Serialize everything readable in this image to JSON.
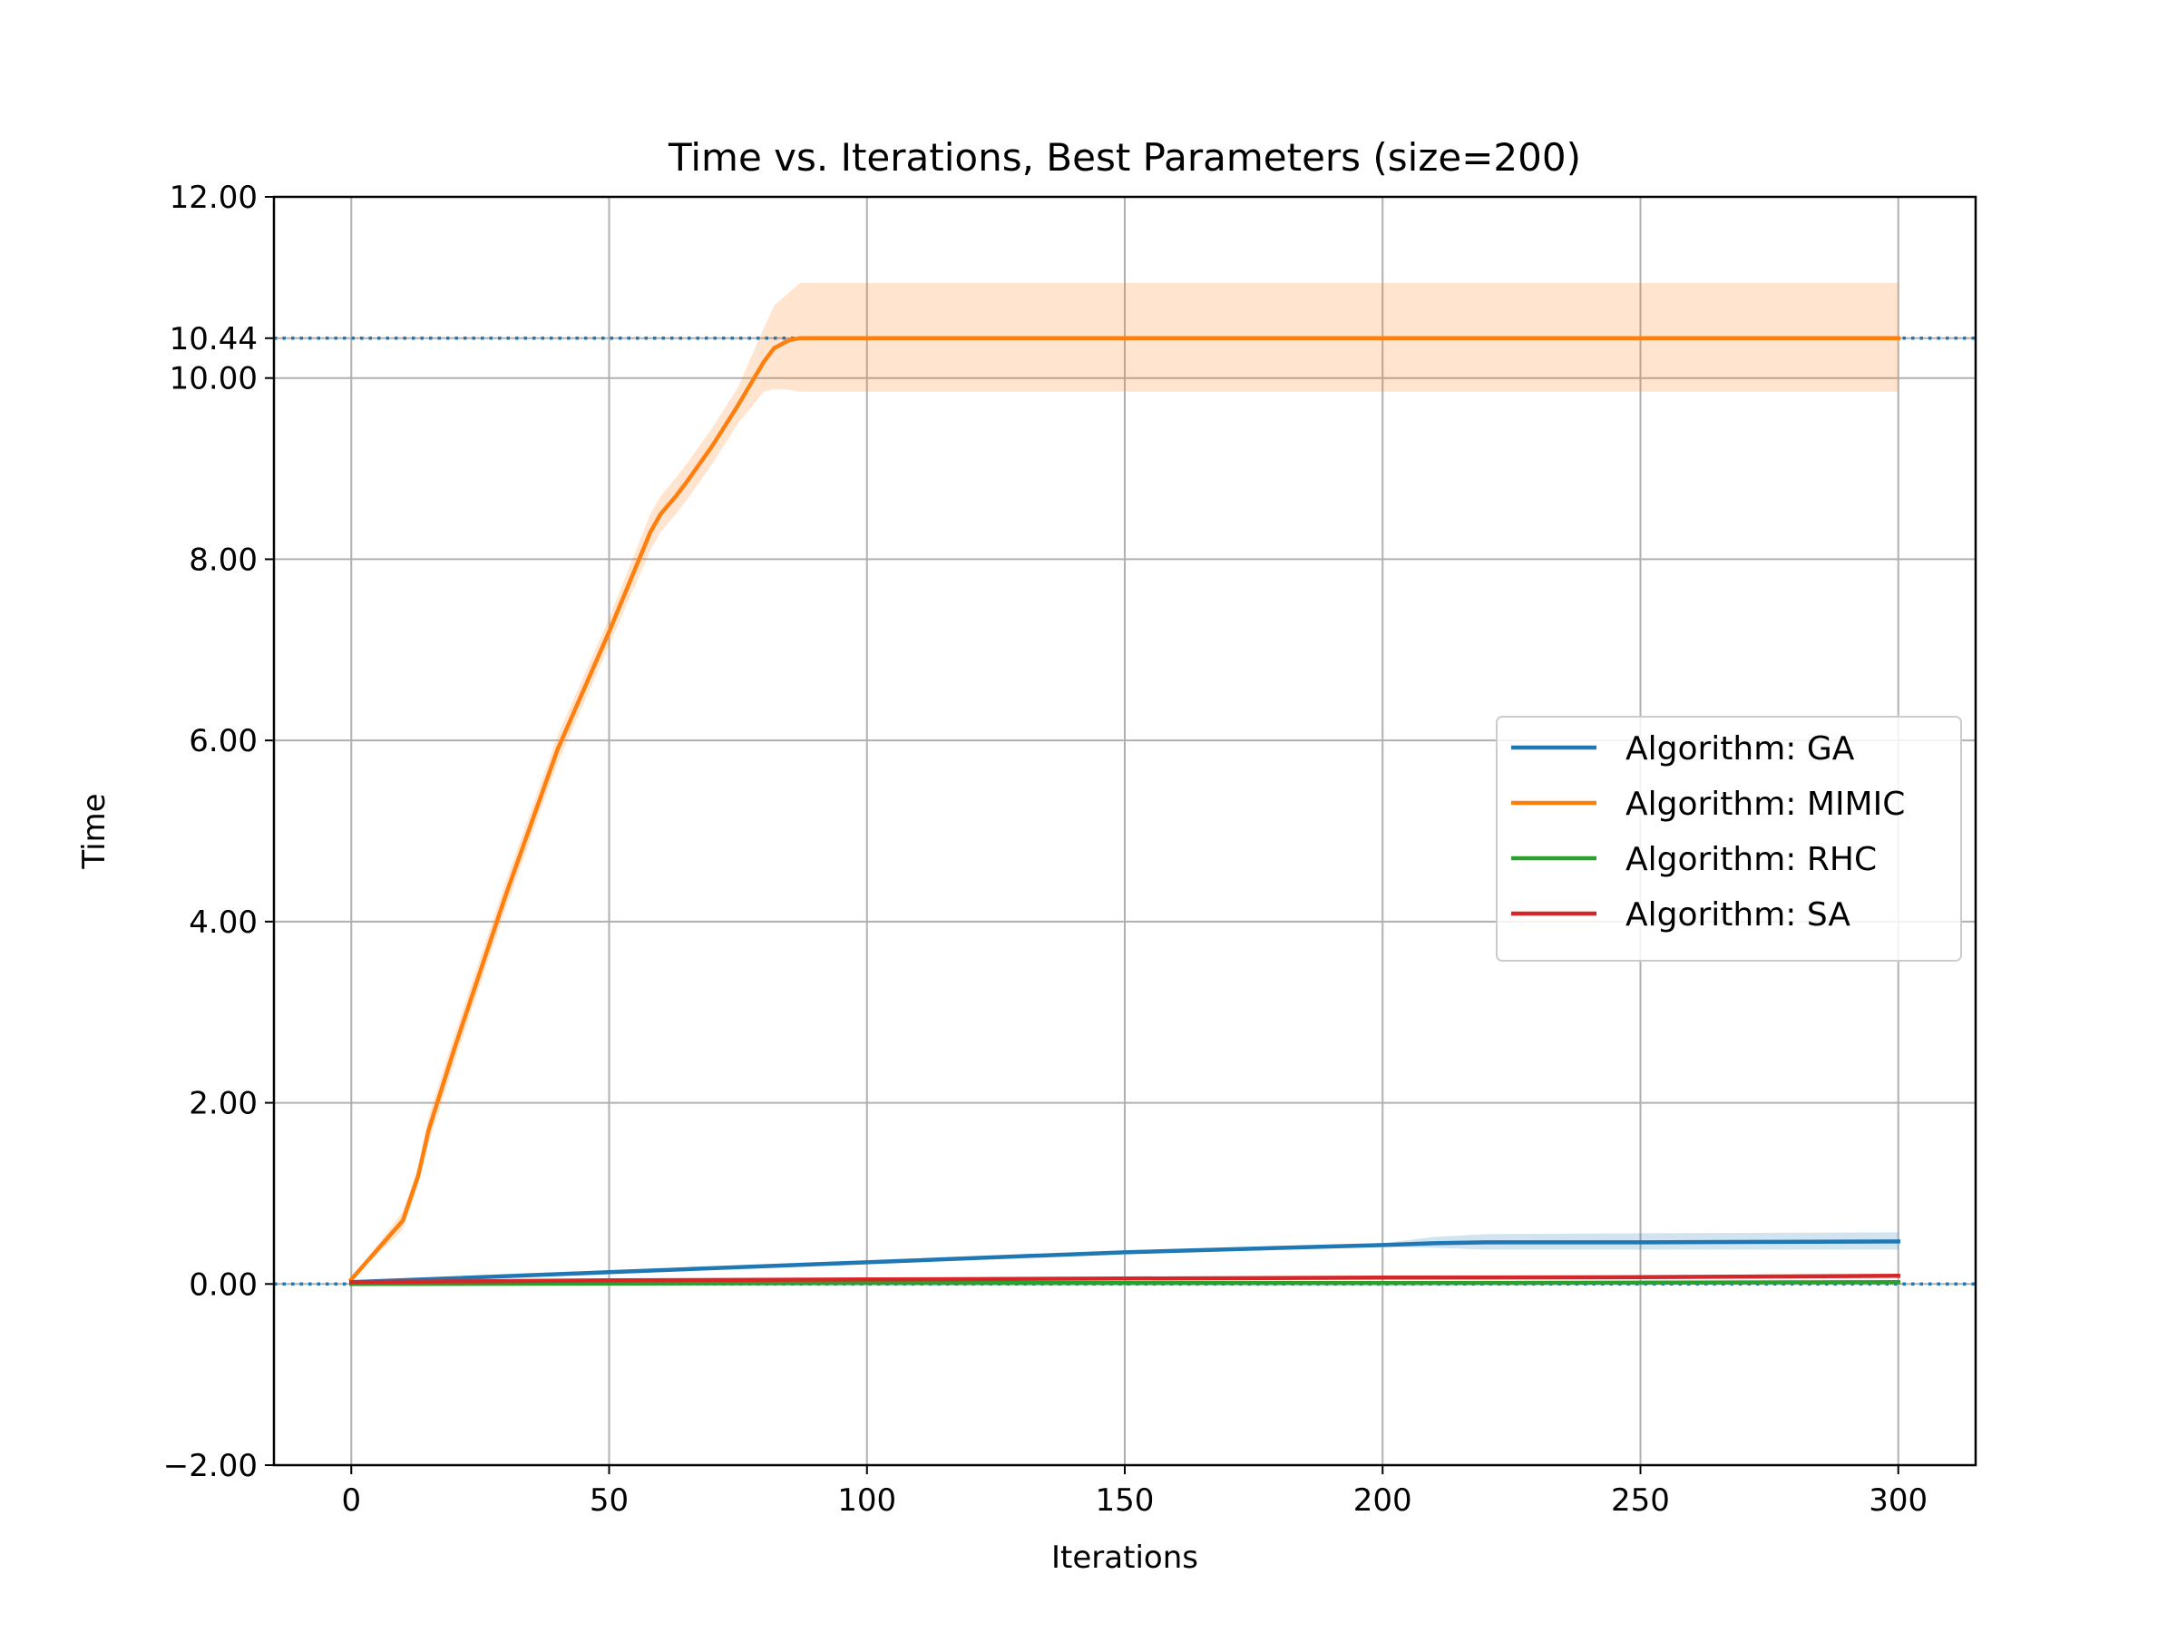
{
  "chart_data": {
    "type": "line",
    "title": "Time vs. Iterations, Best Parameters (size=200)",
    "xlabel": "Iterations",
    "ylabel": "Time",
    "xlim": [
      -15,
      315
    ],
    "ylim": [
      -2,
      12
    ],
    "xticks": [
      0,
      50,
      100,
      150,
      200,
      250,
      300
    ],
    "xtick_labels": [
      "0",
      "50",
      "100",
      "150",
      "200",
      "250",
      "300"
    ],
    "yticks": [
      -2,
      0,
      2,
      4,
      6,
      8,
      10,
      10.44,
      12
    ],
    "ytick_labels": [
      "−2.00",
      "0.00",
      "2.00",
      "4.00",
      "6.00",
      "8.00",
      "10.00",
      "10.44",
      "12.00"
    ],
    "grid": true,
    "legend_position": "center-right",
    "reference_lines": [
      {
        "y": 10.44,
        "style": "dotted",
        "color": "#1f77b4"
      },
      {
        "y": 0.0,
        "style": "dotted",
        "color": "#1f77b4"
      }
    ],
    "series": [
      {
        "name": "Algorithm: GA",
        "color": "#1f77b4",
        "x": [
          0,
          50,
          100,
          150,
          200,
          210,
          220,
          250,
          300
        ],
        "y": [
          0.02,
          0.13,
          0.24,
          0.35,
          0.43,
          0.45,
          0.46,
          0.46,
          0.47
        ],
        "band_lower": [
          0.02,
          0.12,
          0.23,
          0.34,
          0.41,
          0.4,
          0.38,
          0.38,
          0.38
        ],
        "band_upper": [
          0.02,
          0.14,
          0.25,
          0.36,
          0.45,
          0.52,
          0.55,
          0.56,
          0.57
        ]
      },
      {
        "name": "Algorithm: MIMIC",
        "color": "#ff7f0e",
        "x": [
          0,
          10,
          13,
          15,
          20,
          30,
          40,
          50,
          58,
          60,
          63,
          65,
          70,
          75,
          80,
          82,
          85,
          87,
          90,
          100,
          150,
          200,
          250,
          300
        ],
        "y": [
          0.05,
          0.7,
          1.2,
          1.7,
          2.6,
          4.3,
          5.9,
          7.2,
          8.3,
          8.5,
          8.7,
          8.85,
          9.25,
          9.7,
          10.18,
          10.33,
          10.42,
          10.44,
          10.44,
          10.44,
          10.44,
          10.44,
          10.44,
          10.44
        ],
        "band_lower": [
          0.05,
          0.6,
          1.1,
          1.55,
          2.45,
          4.15,
          5.75,
          7.05,
          8.1,
          8.3,
          8.5,
          8.65,
          9.05,
          9.5,
          9.85,
          9.88,
          9.87,
          9.85,
          9.85,
          9.85,
          9.85,
          9.85,
          9.85,
          9.85
        ],
        "band_upper": [
          0.05,
          0.8,
          1.3,
          1.85,
          2.75,
          4.45,
          6.05,
          7.35,
          8.5,
          8.7,
          8.9,
          9.05,
          9.45,
          9.9,
          10.55,
          10.8,
          10.95,
          11.05,
          11.05,
          11.05,
          11.05,
          11.05,
          11.05,
          11.05
        ]
      },
      {
        "name": "Algorithm: RHC",
        "color": "#2ca02c",
        "x": [
          0,
          100,
          200,
          300
        ],
        "y": [
          0.0,
          0.01,
          0.01,
          0.02
        ]
      },
      {
        "name": "Algorithm: SA",
        "color": "#d62728",
        "x": [
          0,
          50,
          100,
          150,
          200,
          250,
          300
        ],
        "y": [
          0.02,
          0.04,
          0.05,
          0.06,
          0.07,
          0.075,
          0.09
        ]
      }
    ]
  }
}
